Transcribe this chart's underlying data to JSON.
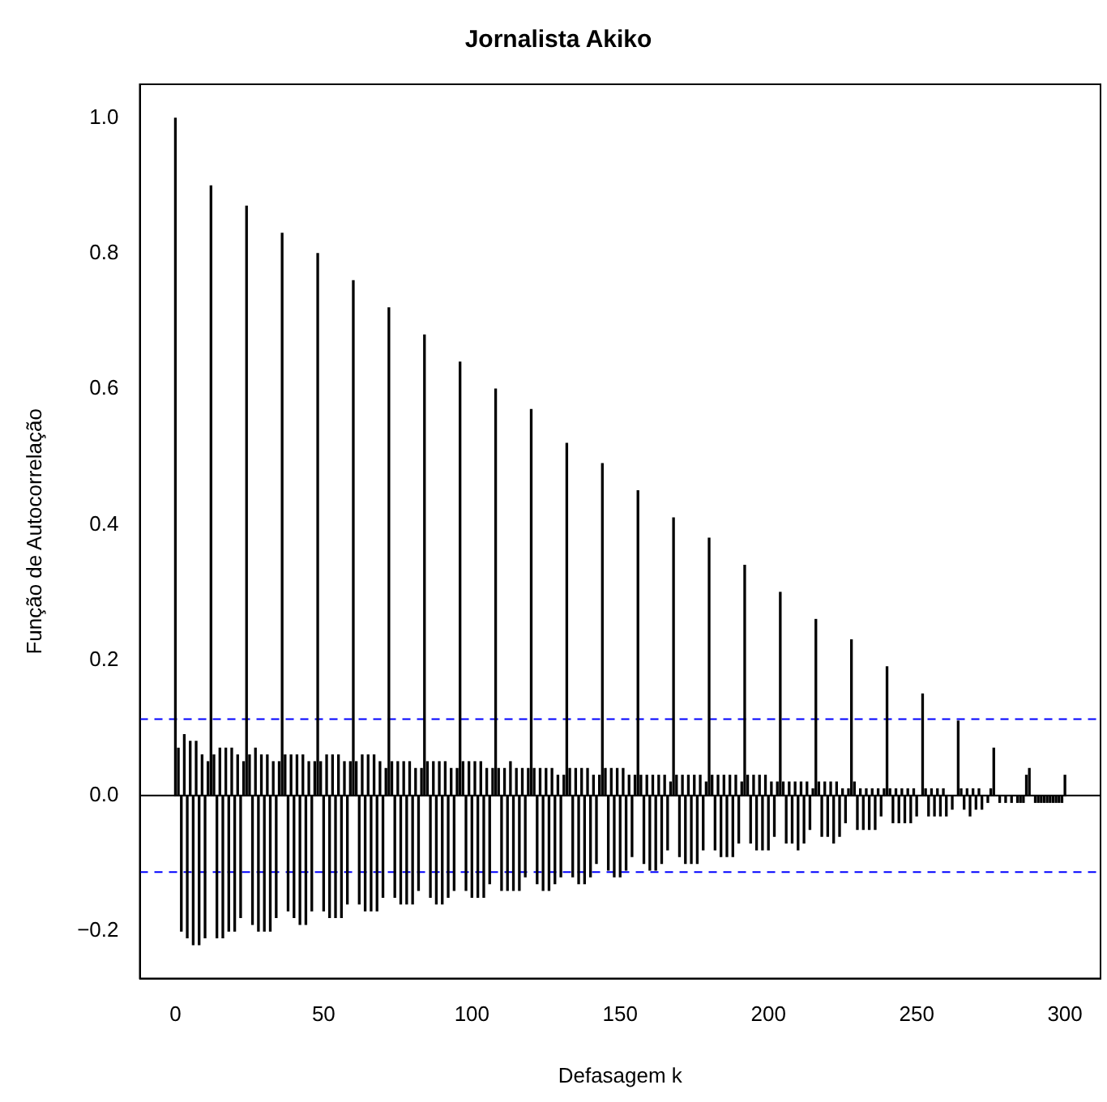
{
  "chart_data": {
    "type": "bar",
    "title": "Jornalista Akiko",
    "xlabel": "Defasagem k",
    "ylabel": "Função de Autocorrelação",
    "color": "#000000",
    "x": [
      0,
      1,
      2,
      3,
      4,
      5,
      6,
      7,
      8,
      9,
      10,
      11,
      12,
      13,
      14,
      15,
      16,
      17,
      18,
      19,
      20,
      21,
      22,
      23,
      24,
      25,
      26,
      27,
      28,
      29,
      30,
      31,
      32,
      33,
      34,
      35,
      36,
      37,
      38,
      39,
      40,
      41,
      42,
      43,
      44,
      45,
      46,
      47,
      48,
      49,
      50,
      51,
      52,
      53,
      54,
      55,
      56,
      57,
      58,
      59,
      60,
      61,
      62,
      63,
      64,
      65,
      66,
      67,
      68,
      69,
      70,
      71,
      72,
      73,
      74,
      75,
      76,
      77,
      78,
      79,
      80,
      81,
      82,
      83,
      84,
      85,
      86,
      87,
      88,
      89,
      90,
      91,
      92,
      93,
      94,
      95,
      96,
      97,
      98,
      99,
      100,
      101,
      102,
      103,
      104,
      105,
      106,
      107,
      108,
      109,
      110,
      111,
      112,
      113,
      114,
      115,
      116,
      117,
      118,
      119,
      120,
      121,
      122,
      123,
      124,
      125,
      126,
      127,
      128,
      129,
      130,
      131,
      132,
      133,
      134,
      135,
      136,
      137,
      138,
      139,
      140,
      141,
      142,
      143,
      144,
      145,
      146,
      147,
      148,
      149,
      150,
      151,
      152,
      153,
      154,
      155,
      156,
      157,
      158,
      159,
      160,
      161,
      162,
      163,
      164,
      165,
      166,
      167,
      168,
      169,
      170,
      171,
      172,
      173,
      174,
      175,
      176,
      177,
      178,
      179,
      180,
      181,
      182,
      183,
      184,
      185,
      186,
      187,
      188,
      189,
      190,
      191,
      192,
      193,
      194,
      195,
      196,
      197,
      198,
      199,
      200,
      201,
      202,
      203,
      204,
      205,
      206,
      207,
      208,
      209,
      210,
      211,
      212,
      213,
      214,
      215,
      216,
      217,
      218,
      219,
      220,
      221,
      222,
      223,
      224,
      225,
      226,
      227,
      228,
      229,
      230,
      231,
      232,
      233,
      234,
      235,
      236,
      237,
      238,
      239,
      240,
      241,
      242,
      243,
      244,
      245,
      246,
      247,
      248,
      249,
      250,
      251,
      252,
      253,
      254,
      255,
      256,
      257,
      258,
      259,
      260,
      261,
      262,
      263,
      264,
      265,
      266,
      267,
      268,
      269,
      270,
      271,
      272,
      273,
      274,
      275,
      276,
      277,
      278,
      279,
      280,
      281,
      282,
      283,
      284,
      285,
      286,
      287,
      288,
      289,
      290,
      291,
      292,
      293,
      294,
      295,
      296,
      297,
      298,
      299,
      300
    ],
    "values": [
      1.0,
      0.07,
      -0.2,
      0.09,
      -0.21,
      0.08,
      -0.22,
      0.08,
      -0.22,
      0.06,
      -0.21,
      0.05,
      0.9,
      0.06,
      -0.21,
      0.07,
      -0.21,
      0.07,
      -0.2,
      0.07,
      -0.2,
      0.06,
      -0.18,
      0.05,
      0.87,
      0.06,
      -0.19,
      0.07,
      -0.2,
      0.06,
      -0.2,
      0.06,
      -0.2,
      0.05,
      -0.18,
      0.05,
      0.83,
      0.06,
      -0.17,
      0.06,
      -0.18,
      0.06,
      -0.19,
      0.06,
      -0.19,
      0.05,
      -0.17,
      0.05,
      0.8,
      0.05,
      -0.17,
      0.06,
      -0.18,
      0.06,
      -0.18,
      0.06,
      -0.18,
      0.05,
      -0.16,
      0.05,
      0.76,
      0.05,
      -0.16,
      0.06,
      -0.17,
      0.06,
      -0.17,
      0.06,
      -0.17,
      0.05,
      -0.15,
      0.04,
      0.72,
      0.05,
      -0.15,
      0.05,
      -0.16,
      0.05,
      -0.16,
      0.05,
      -0.16,
      0.04,
      -0.14,
      0.04,
      0.68,
      0.05,
      -0.15,
      0.05,
      -0.16,
      0.05,
      -0.16,
      0.05,
      -0.15,
      0.04,
      -0.14,
      0.04,
      0.64,
      0.05,
      -0.14,
      0.05,
      -0.15,
      0.05,
      -0.15,
      0.05,
      -0.15,
      0.04,
      -0.13,
      0.04,
      0.6,
      0.04,
      -0.14,
      0.04,
      -0.14,
      0.05,
      -0.14,
      0.04,
      -0.14,
      0.04,
      -0.12,
      0.04,
      0.57,
      0.04,
      -0.13,
      0.04,
      -0.14,
      0.04,
      -0.14,
      0.04,
      -0.13,
      0.03,
      -0.12,
      0.03,
      0.52,
      0.04,
      -0.12,
      0.04,
      -0.13,
      0.04,
      -0.13,
      0.04,
      -0.12,
      0.03,
      -0.1,
      0.03,
      0.49,
      0.04,
      -0.11,
      0.04,
      -0.12,
      0.04,
      -0.12,
      0.04,
      -0.11,
      0.03,
      -0.09,
      0.03,
      0.45,
      0.03,
      -0.1,
      0.03,
      -0.11,
      0.03,
      -0.11,
      0.03,
      -0.1,
      0.03,
      -0.08,
      0.02,
      0.41,
      0.03,
      -0.09,
      0.03,
      -0.1,
      0.03,
      -0.1,
      0.03,
      -0.1,
      0.03,
      -0.08,
      0.02,
      0.38,
      0.03,
      -0.08,
      0.03,
      -0.09,
      0.03,
      -0.09,
      0.03,
      -0.09,
      0.03,
      -0.07,
      0.02,
      0.34,
      0.03,
      -0.07,
      0.03,
      -0.08,
      0.03,
      -0.08,
      0.03,
      -0.08,
      0.02,
      -0.06,
      0.02,
      0.3,
      0.02,
      -0.07,
      0.02,
      -0.07,
      0.02,
      -0.08,
      0.02,
      -0.07,
      0.02,
      -0.05,
      0.01,
      0.26,
      0.02,
      -0.06,
      0.02,
      -0.06,
      0.02,
      -0.07,
      0.02,
      -0.06,
      0.01,
      -0.04,
      0.01,
      0.23,
      0.02,
      -0.05,
      0.01,
      -0.05,
      0.01,
      -0.05,
      0.01,
      -0.05,
      0.01,
      -0.03,
      0.01,
      0.19,
      0.01,
      -0.04,
      0.01,
      -0.04,
      0.01,
      -0.04,
      0.01,
      -0.04,
      0.01,
      -0.03,
      0.0,
      0.15,
      0.01,
      -0.03,
      0.01,
      -0.03,
      0.01,
      -0.03,
      0.01,
      -0.03,
      0.0,
      -0.02,
      0.0,
      0.11,
      0.01,
      -0.02,
      0.01,
      -0.03,
      0.01,
      -0.02,
      0.01,
      -0.02,
      0.0,
      -0.01,
      0.01,
      0.07,
      0.0,
      -0.01,
      0.0,
      -0.01,
      0.0,
      -0.01,
      0.0,
      -0.01,
      -0.01,
      -0.01,
      0.03,
      0.04,
      0.0,
      -0.01,
      -0.01,
      -0.01,
      -0.01,
      -0.01,
      -0.01,
      -0.01,
      -0.01,
      -0.01,
      -0.01,
      0.03
    ],
    "xlim": [
      -12,
      312
    ],
    "xticks": [
      0,
      50,
      100,
      150,
      200,
      250,
      300
    ],
    "ylim": [
      -0.27,
      1.05
    ],
    "yticks": [
      {
        "value": -0.2,
        "label": "−0.2"
      },
      {
        "value": 0,
        "label": "0.0"
      },
      0.2,
      0.4,
      0.6,
      0.8,
      {
        "value": 1,
        "label": "1.0"
      }
    ],
    "ref_lines": [
      {
        "axis": "y",
        "value": 0,
        "color": "#000000",
        "line_style": "solid"
      },
      {
        "axis": "y",
        "value": 0.113,
        "color": "#0000ff",
        "line_style": "dashed"
      },
      {
        "axis": "y",
        "value": -0.113,
        "color": "#0000ff",
        "line_style": "dashed"
      }
    ]
  }
}
